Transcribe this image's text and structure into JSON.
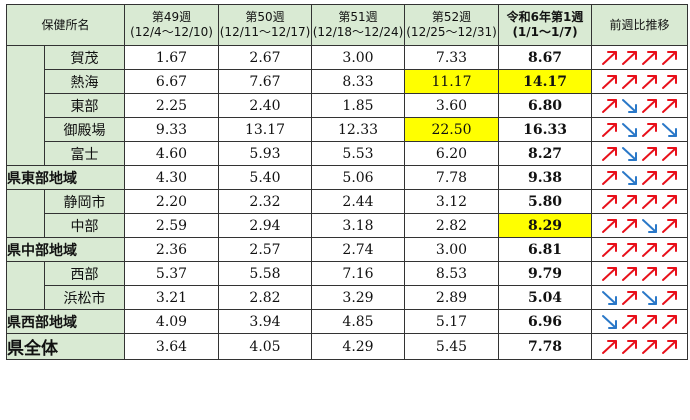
{
  "header": {
    "office": "保健所名",
    "weeks": [
      {
        "label": "第49週",
        "range": "(12/4〜12/10)"
      },
      {
        "label": "第50週",
        "range": "(12/11〜12/17)"
      },
      {
        "label": "第51週",
        "range": "(12/18〜12/24)"
      },
      {
        "label": "第52週",
        "range": "(12/25〜12/31)"
      }
    ],
    "current": {
      "label": "令和6年第1週",
      "range": "(1/1〜1/7)"
    },
    "trend": "前週比推移"
  },
  "rows": [
    {
      "name": "賀茂",
      "values": [
        "1.67",
        "2.67",
        "3.00",
        "7.33"
      ],
      "current": "8.67",
      "trend": [
        "up",
        "up",
        "up",
        "up"
      ]
    },
    {
      "name": "熱海",
      "values": [
        "6.67",
        "7.67",
        "8.33",
        "11.17"
      ],
      "current": "14.17",
      "trend": [
        "up",
        "up",
        "up",
        "up"
      ]
    },
    {
      "name": "東部",
      "values": [
        "2.25",
        "2.40",
        "1.85",
        "3.60"
      ],
      "current": "6.80",
      "trend": [
        "up",
        "down",
        "up",
        "up"
      ]
    },
    {
      "name": "御殿場",
      "values": [
        "9.33",
        "13.17",
        "12.33",
        "22.50"
      ],
      "current": "16.33",
      "trend": [
        "up",
        "down",
        "up",
        "down"
      ]
    },
    {
      "name": "富士",
      "values": [
        "4.60",
        "5.93",
        "5.53",
        "6.20"
      ],
      "current": "8.27",
      "trend": [
        "up",
        "down",
        "up",
        "up"
      ]
    },
    {
      "name": "県東部地域",
      "values": [
        "4.30",
        "5.40",
        "5.06",
        "7.78"
      ],
      "current": "9.38",
      "trend": [
        "up",
        "down",
        "up",
        "up"
      ]
    },
    {
      "name": "静岡市",
      "values": [
        "2.20",
        "2.32",
        "2.44",
        "3.12"
      ],
      "current": "5.80",
      "trend": [
        "up",
        "up",
        "up",
        "up"
      ]
    },
    {
      "name": "中部",
      "values": [
        "2.59",
        "2.94",
        "3.18",
        "2.82"
      ],
      "current": "8.29",
      "trend": [
        "up",
        "up",
        "down",
        "up"
      ]
    },
    {
      "name": "県中部地域",
      "values": [
        "2.36",
        "2.57",
        "2.74",
        "3.00"
      ],
      "current": "6.81",
      "trend": [
        "up",
        "up",
        "up",
        "up"
      ]
    },
    {
      "name": "西部",
      "values": [
        "5.37",
        "5.58",
        "7.16",
        "8.53"
      ],
      "current": "9.79",
      "trend": [
        "up",
        "up",
        "up",
        "up"
      ]
    },
    {
      "name": "浜松市",
      "values": [
        "3.21",
        "2.82",
        "3.29",
        "2.89"
      ],
      "current": "5.04",
      "trend": [
        "down",
        "up",
        "down",
        "up"
      ]
    },
    {
      "name": "県西部地域",
      "values": [
        "4.09",
        "3.94",
        "4.85",
        "5.17"
      ],
      "current": "6.96",
      "trend": [
        "down",
        "up",
        "up",
        "up"
      ]
    },
    {
      "name": "県全体",
      "values": [
        "3.64",
        "4.05",
        "4.29",
        "5.45"
      ],
      "current": "7.78",
      "trend": [
        "up",
        "up",
        "up",
        "up"
      ]
    }
  ],
  "colors": {
    "header_bg": "#d9ead3",
    "highlight": "#ffff00",
    "arrow_up": "#e8101a",
    "arrow_down": "#2a78c8"
  }
}
